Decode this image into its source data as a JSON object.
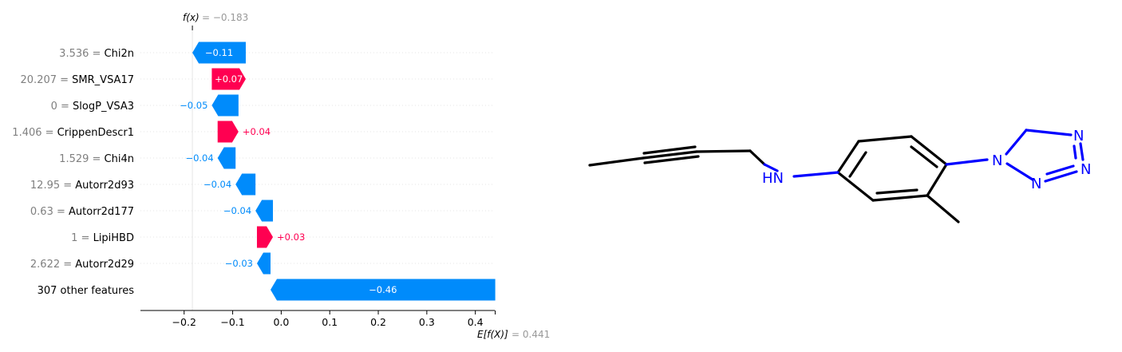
{
  "chart_data": {
    "type": "waterfall",
    "fx_label": "f(x)",
    "fx_value": "= −0.183",
    "efx_label": "E[f(X)]",
    "efx_value": "= 0.441",
    "fx": -0.183,
    "base_value": 0.441,
    "xlim": [
      -0.29,
      0.44
    ],
    "x_ticks": [
      -0.2,
      -0.1,
      0.0,
      0.1,
      0.2,
      0.3,
      0.4
    ],
    "x_tick_labels": [
      "−0.2",
      "−0.1",
      "0.0",
      "0.1",
      "0.2",
      "0.3",
      "0.4"
    ],
    "features": [
      {
        "value_text": "3.536",
        "name": "Chi2n",
        "start": -0.073,
        "end": -0.183,
        "label": "−0.11",
        "label_inside": true
      },
      {
        "value_text": "20.207",
        "name": "SMR_VSA17",
        "start": -0.143,
        "end": -0.073,
        "label": "+0.07",
        "label_inside": true
      },
      {
        "value_text": "0",
        "name": "SlogP_VSA3",
        "start": -0.088,
        "end": -0.143,
        "label": "−0.05",
        "label_inside": false
      },
      {
        "value_text": "1.406",
        "name": "CrippenDescr1",
        "start": -0.131,
        "end": -0.088,
        "label": "+0.04",
        "label_inside": false
      },
      {
        "value_text": "1.529",
        "name": "Chi4n",
        "start": -0.094,
        "end": -0.131,
        "label": "−0.04",
        "label_inside": false
      },
      {
        "value_text": "12.95",
        "name": "Autorr2d93",
        "start": -0.053,
        "end": -0.094,
        "label": "−0.04",
        "label_inside": false
      },
      {
        "value_text": "0.63",
        "name": "Autorr2d177",
        "start": -0.017,
        "end": -0.053,
        "label": "−0.04",
        "label_inside": false
      },
      {
        "value_text": "1",
        "name": "LipiHBD",
        "start": -0.05,
        "end": -0.017,
        "label": "+0.03",
        "label_inside": false
      },
      {
        "value_text": "2.622",
        "name": "Autorr2d29",
        "start": -0.022,
        "end": -0.05,
        "label": "−0.03",
        "label_inside": false
      },
      {
        "value_text": "",
        "name": "307 other features",
        "start": 0.441,
        "end": -0.022,
        "label": "−0.46",
        "label_inside": true
      }
    ],
    "colors": {
      "positive": "#ff0051",
      "negative": "#008bfb",
      "axis": "#000000",
      "gray_text": "#999999",
      "feature_value": "#7f7f7f"
    }
  },
  "molecule": {
    "atom_labels": [
      "HN",
      "N",
      "N",
      "N",
      "N"
    ],
    "colors": {
      "bond": "#000000",
      "nitrogen": "#0000ff"
    }
  }
}
